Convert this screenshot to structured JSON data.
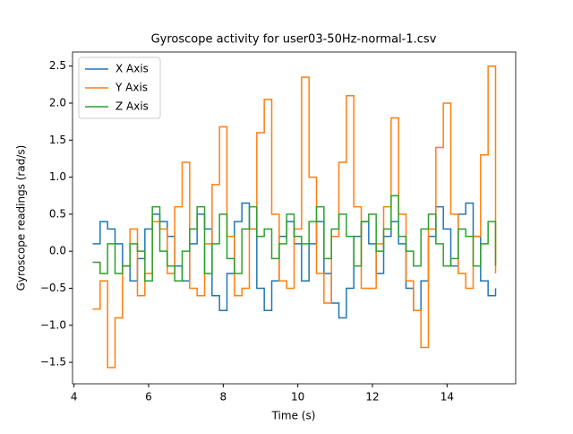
{
  "chart_data": {
    "type": "step",
    "title": "Gyroscope activity for user03-50Hz-normal-1.csv",
    "xlabel": "Time (s)",
    "ylabel": "Gyroscope readings (rad/s)",
    "x": [
      4.5,
      4.7,
      4.9,
      5.1,
      5.3,
      5.5,
      5.7,
      5.9,
      6.1,
      6.3,
      6.5,
      6.7,
      6.9,
      7.1,
      7.3,
      7.5,
      7.7,
      7.9,
      8.1,
      8.3,
      8.5,
      8.7,
      8.9,
      9.1,
      9.3,
      9.5,
      9.7,
      9.9,
      10.1,
      10.3,
      10.5,
      10.7,
      10.9,
      11.1,
      11.3,
      11.5,
      11.7,
      11.9,
      12.1,
      12.3,
      12.5,
      12.7,
      12.9,
      13.1,
      13.3,
      13.5,
      13.7,
      13.9,
      14.1,
      14.3,
      14.5,
      14.7,
      14.9,
      15.1,
      15.3
    ],
    "series": [
      {
        "name": "X Axis",
        "color": "#1f77b4",
        "values": [
          0.1,
          0.4,
          0.3,
          0.1,
          -0.2,
          -0.4,
          -0.1,
          0.3,
          0.5,
          0.4,
          0.2,
          -0.2,
          -0.4,
          0.1,
          0.5,
          0.3,
          -0.6,
          -0.8,
          -0.3,
          0.4,
          0.65,
          0.3,
          -0.5,
          -0.8,
          -0.4,
          0.2,
          0.4,
          0.1,
          -0.4,
          0.1,
          0.4,
          -0.3,
          -0.7,
          -0.9,
          -0.5,
          0.2,
          0.4,
          0.1,
          -0.3,
          0.2,
          0.4,
          0.1,
          -0.5,
          -0.8,
          -0.4,
          0.2,
          0.6,
          0.3,
          -0.2,
          0.5,
          0.65,
          0.2,
          -0.4,
          -0.6,
          -0.5
        ]
      },
      {
        "name": "Y Axis",
        "color": "#ff7f0e",
        "values": [
          -0.78,
          -0.4,
          -1.57,
          -0.9,
          -0.2,
          0.3,
          -0.6,
          -0.3,
          0.4,
          0.3,
          -0.3,
          0.6,
          1.2,
          -0.5,
          -0.6,
          0.1,
          0.9,
          1.68,
          0.2,
          -0.6,
          -0.5,
          0.3,
          1.6,
          2.05,
          0.5,
          -0.4,
          -0.5,
          0.3,
          2.35,
          1.0,
          -0.3,
          -0.7,
          0.2,
          1.2,
          2.1,
          0.6,
          -0.5,
          -0.5,
          0.1,
          0.6,
          1.8,
          0.5,
          -0.4,
          -0.8,
          -1.3,
          0.3,
          1.4,
          2.0,
          0.5,
          -0.3,
          -0.5,
          0.2,
          1.3,
          2.5,
          -0.3
        ]
      },
      {
        "name": "Z Axis",
        "color": "#2ca02c",
        "values": [
          -0.15,
          -0.3,
          0.1,
          -0.3,
          -0.2,
          0.1,
          0.0,
          -0.4,
          0.6,
          0.0,
          -0.2,
          -0.4,
          0.0,
          0.3,
          0.6,
          -0.3,
          0.1,
          0.5,
          -0.1,
          -0.3,
          0.3,
          0.6,
          0.2,
          0.3,
          -0.1,
          0.1,
          0.5,
          0.2,
          0.1,
          0.4,
          0.6,
          -0.1,
          0.3,
          0.5,
          0.2,
          -0.2,
          0.4,
          0.5,
          0.0,
          0.3,
          0.75,
          0.2,
          0.0,
          -0.2,
          0.3,
          0.5,
          0.1,
          -0.2,
          -0.1,
          0.3,
          0.2,
          -0.2,
          0.1,
          0.4,
          -0.2
        ]
      }
    ],
    "xlim": [
      3.96,
      15.84
    ],
    "xticks": [
      4,
      6,
      8,
      10,
      12,
      14
    ],
    "ylim": [
      -1.79,
      2.69
    ],
    "yticks": [
      {
        "value": -1.5,
        "label": "−1.5"
      },
      {
        "value": -1.0,
        "label": "−1.0"
      },
      {
        "value": -0.5,
        "label": "−0.5"
      },
      {
        "value": 0,
        "label": "0.0"
      },
      {
        "value": 0.5,
        "label": "0.5"
      },
      {
        "value": 1.0,
        "label": "1.0"
      },
      {
        "value": 1.5,
        "label": "1.5"
      },
      {
        "value": 2.0,
        "label": "2.0"
      },
      {
        "value": 2.5,
        "label": "2.5"
      }
    ],
    "legend": "upper left"
  }
}
